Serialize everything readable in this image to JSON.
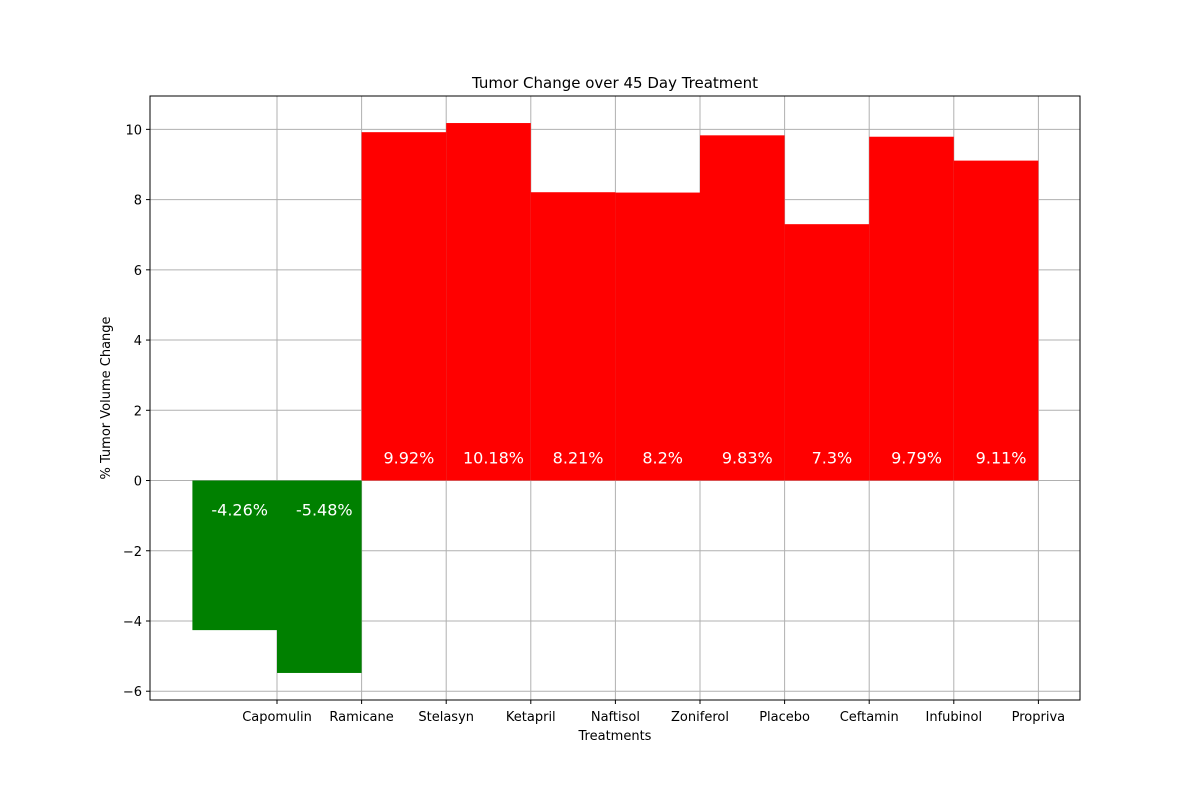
{
  "chart_data": {
    "type": "bar",
    "title": "Tumor Change over 45 Day Treatment",
    "xlabel": "Treatments",
    "ylabel": "% Tumor Volume Change",
    "categories": [
      "Capomulin",
      "Ramicane",
      "Stelasyn",
      "Ketapril",
      "Naftisol",
      "Zoniferol",
      "Placebo",
      "Ceftamin",
      "Infubinol",
      "Propriva"
    ],
    "values": [
      -4.26,
      -5.48,
      9.92,
      10.18,
      8.21,
      8.2,
      9.83,
      7.3,
      9.79,
      9.11
    ],
    "data_labels": [
      "-4.26%",
      "-5.48%",
      "9.92%",
      "10.18%",
      "8.21%",
      "8.2%",
      "9.83%",
      "7.3%",
      "9.79%",
      "9.11%"
    ],
    "ylim": [
      -6.25,
      10.95
    ],
    "yticks": [
      -6,
      -4,
      -2,
      0,
      2,
      4,
      6,
      8,
      10
    ],
    "ytick_labels": [
      "−6",
      "−4",
      "−2",
      "0",
      "2",
      "4",
      "6",
      "8",
      "10"
    ],
    "grid": true,
    "bar_alignment": "edge",
    "colors": {
      "negative": "#008000",
      "positive": "#ff0000",
      "label_text": "#ffffff",
      "grid": "#b0b0b0"
    }
  }
}
